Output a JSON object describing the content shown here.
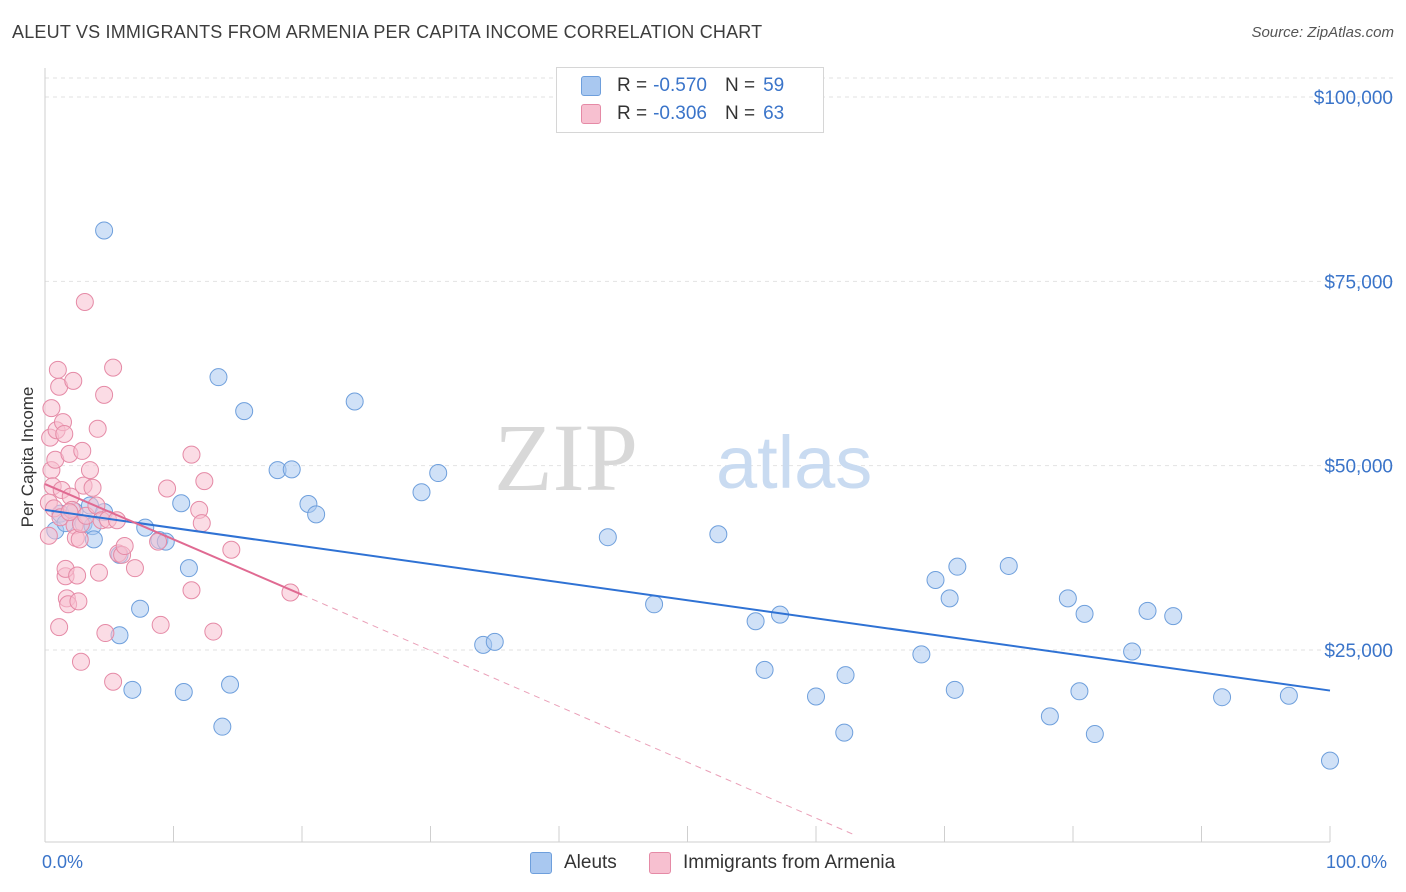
{
  "title": "ALEUT VS IMMIGRANTS FROM ARMENIA PER CAPITA INCOME CORRELATION CHART",
  "source": "Source: ZipAtlas.com",
  "watermark": {
    "zip": "ZIP",
    "atlas": "atlas"
  },
  "legend": {
    "rows": [
      {
        "r_label": "R =",
        "r_value": "-0.570",
        "n_label": "N =",
        "n_value": "59",
        "color": "#a9c8f0",
        "border": "#6e9fdc"
      },
      {
        "r_label": "R =",
        "r_value": "-0.306",
        "n_label": "N =",
        "n_value": "63",
        "color": "#f7c0d0",
        "border": "#e58aa6"
      }
    ]
  },
  "bottom_legend": {
    "aleuts": "Aleuts",
    "armenia": "Immigrants from Armenia"
  },
  "chart_data": {
    "type": "scatter",
    "title": "ALEUT VS IMMIGRANTS FROM ARMENIA PER CAPITA INCOME CORRELATION CHART",
    "xlabel": "",
    "ylabel": "Per Capita Income",
    "xlim": [
      0,
      100
    ],
    "ylim": [
      0,
      105000
    ],
    "x_tick_labels": [
      "0.0%",
      "100.0%"
    ],
    "y_ticks": [
      25000,
      50000,
      75000,
      100000
    ],
    "y_tick_labels": [
      "$25,000",
      "$50,000",
      "$75,000",
      "$100,000"
    ],
    "grid": true,
    "legend_position": "top-center",
    "series": [
      {
        "name": "Aleuts",
        "color": "#6e9fdc",
        "fill": "#a9c8f0",
        "line_color": "#2f72d4",
        "trend": {
          "x": [
            0,
            100
          ],
          "y": [
            44000,
            19500
          ]
        },
        "points": [
          [
            0.8,
            41200
          ],
          [
            1.2,
            43500
          ],
          [
            1.6,
            42200
          ],
          [
            2.3,
            43800
          ],
          [
            3.0,
            42100
          ],
          [
            3.5,
            44600
          ],
          [
            3.7,
            41800
          ],
          [
            3.8,
            40000
          ],
          [
            4.6,
            43700
          ],
          [
            5.8,
            37900
          ],
          [
            4.6,
            81900
          ],
          [
            5.8,
            27000
          ],
          [
            6.8,
            19600
          ],
          [
            7.4,
            30600
          ],
          [
            7.8,
            41600
          ],
          [
            8.9,
            39900
          ],
          [
            9.4,
            39700
          ],
          [
            10.6,
            44900
          ],
          [
            10.8,
            19300
          ],
          [
            11.2,
            36100
          ],
          [
            13.5,
            62000
          ],
          [
            13.8,
            14600
          ],
          [
            14.4,
            20300
          ],
          [
            15.5,
            57400
          ],
          [
            18.1,
            49400
          ],
          [
            19.2,
            49500
          ],
          [
            20.5,
            44800
          ],
          [
            21.1,
            43400
          ],
          [
            24.1,
            58700
          ],
          [
            29.3,
            46400
          ],
          [
            30.6,
            49000
          ],
          [
            34.1,
            25700
          ],
          [
            35.0,
            26100
          ],
          [
            43.8,
            40300
          ],
          [
            47.4,
            31200
          ],
          [
            52.4,
            40700
          ],
          [
            55.3,
            28900
          ],
          [
            56.0,
            22300
          ],
          [
            57.2,
            29800
          ],
          [
            60.0,
            18700
          ],
          [
            62.2,
            13800
          ],
          [
            62.3,
            21600
          ],
          [
            68.2,
            24400
          ],
          [
            69.3,
            34500
          ],
          [
            70.4,
            32000
          ],
          [
            70.8,
            19600
          ],
          [
            71.0,
            36300
          ],
          [
            75.0,
            36400
          ],
          [
            78.2,
            16000
          ],
          [
            79.6,
            32000
          ],
          [
            80.5,
            19400
          ],
          [
            80.9,
            29900
          ],
          [
            81.7,
            13600
          ],
          [
            84.6,
            24800
          ],
          [
            85.8,
            30300
          ],
          [
            87.8,
            29600
          ],
          [
            91.6,
            18600
          ],
          [
            96.8,
            18800
          ],
          [
            100.0,
            10000
          ]
        ]
      },
      {
        "name": "Immigrants from Armenia",
        "color": "#e58aa6",
        "fill": "#f7c0d0",
        "line_color": "#e06a92",
        "trend": {
          "x": [
            0,
            20
          ],
          "y": [
            47500,
            32500
          ]
        },
        "trend_dashed": {
          "x": [
            20,
            62.9
          ],
          "y": [
            32500,
            0
          ]
        },
        "points": [
          [
            0.3,
            45000
          ],
          [
            0.4,
            53800
          ],
          [
            0.5,
            49400
          ],
          [
            0.5,
            57800
          ],
          [
            0.6,
            47200
          ],
          [
            0.7,
            44200
          ],
          [
            0.8,
            50800
          ],
          [
            0.9,
            54800
          ],
          [
            1.0,
            63000
          ],
          [
            1.1,
            28100
          ],
          [
            1.1,
            60700
          ],
          [
            1.2,
            43000
          ],
          [
            1.3,
            46700
          ],
          [
            1.4,
            55900
          ],
          [
            1.5,
            54300
          ],
          [
            1.6,
            35000
          ],
          [
            1.6,
            36000
          ],
          [
            1.7,
            32000
          ],
          [
            1.8,
            31200
          ],
          [
            1.9,
            51600
          ],
          [
            2.0,
            45800
          ],
          [
            2.1,
            44000
          ],
          [
            2.2,
            61500
          ],
          [
            2.3,
            41900
          ],
          [
            2.4,
            40200
          ],
          [
            2.5,
            35100
          ],
          [
            2.6,
            31600
          ],
          [
            2.7,
            40000
          ],
          [
            2.8,
            42100
          ],
          [
            2.8,
            23400
          ],
          [
            2.9,
            52000
          ],
          [
            3.0,
            47300
          ],
          [
            3.1,
            72200
          ],
          [
            3.2,
            43200
          ],
          [
            3.5,
            49400
          ],
          [
            3.7,
            47000
          ],
          [
            4.0,
            44600
          ],
          [
            4.1,
            55000
          ],
          [
            4.2,
            35500
          ],
          [
            4.4,
            42600
          ],
          [
            4.6,
            59600
          ],
          [
            4.7,
            27300
          ],
          [
            4.9,
            42700
          ],
          [
            5.3,
            63300
          ],
          [
            5.3,
            20700
          ],
          [
            5.6,
            42600
          ],
          [
            5.7,
            38100
          ],
          [
            6.0,
            37900
          ],
          [
            7.0,
            36100
          ],
          [
            8.8,
            39700
          ],
          [
            9.0,
            28400
          ],
          [
            9.5,
            46900
          ],
          [
            11.4,
            51500
          ],
          [
            11.4,
            33100
          ],
          [
            12.0,
            44000
          ],
          [
            12.2,
            42200
          ],
          [
            12.4,
            47900
          ],
          [
            13.1,
            27500
          ],
          [
            14.5,
            38600
          ],
          [
            19.1,
            32800
          ],
          [
            0.3,
            40500
          ],
          [
            1.9,
            43700
          ],
          [
            6.2,
            39100
          ]
        ]
      }
    ]
  }
}
